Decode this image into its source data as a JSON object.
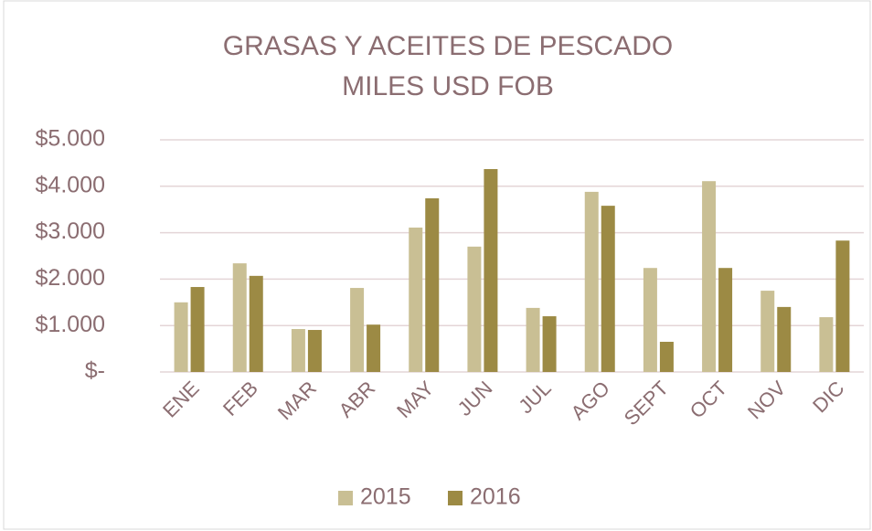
{
  "chart_data": {
    "type": "bar",
    "title": "GRASAS Y ACEITES DE PESCADO",
    "subtitle": "MILES USD FOB",
    "categories": [
      "ENE",
      "FEB",
      "MAR",
      "ABR",
      "MAY",
      "JUN",
      "JUL",
      "AGO",
      "SEPT",
      "OCT",
      "NOV",
      "DIC"
    ],
    "series": [
      {
        "name": "2015",
        "color": "#c9bf94",
        "values": [
          1500,
          2340,
          925,
          1810,
          3110,
          2700,
          1380,
          3880,
          2240,
          4110,
          1750,
          1180
        ]
      },
      {
        "name": "2016",
        "color": "#9c8a44",
        "values": [
          1830,
          2070,
          905,
          1020,
          3740,
          4370,
          1200,
          3580,
          650,
          2240,
          1400,
          2830
        ]
      }
    ],
    "ylim": [
      0,
      5000
    ],
    "yticks": [
      {
        "value": 0,
        "label": "$-"
      },
      {
        "value": 1000,
        "label": "$1.000"
      },
      {
        "value": 2000,
        "label": "$2.000"
      },
      {
        "value": 3000,
        "label": "$3.000"
      },
      {
        "value": 4000,
        "label": "$4.000"
      },
      {
        "value": 5000,
        "label": "$5.000"
      }
    ],
    "grid": true,
    "legend": "bottom"
  }
}
